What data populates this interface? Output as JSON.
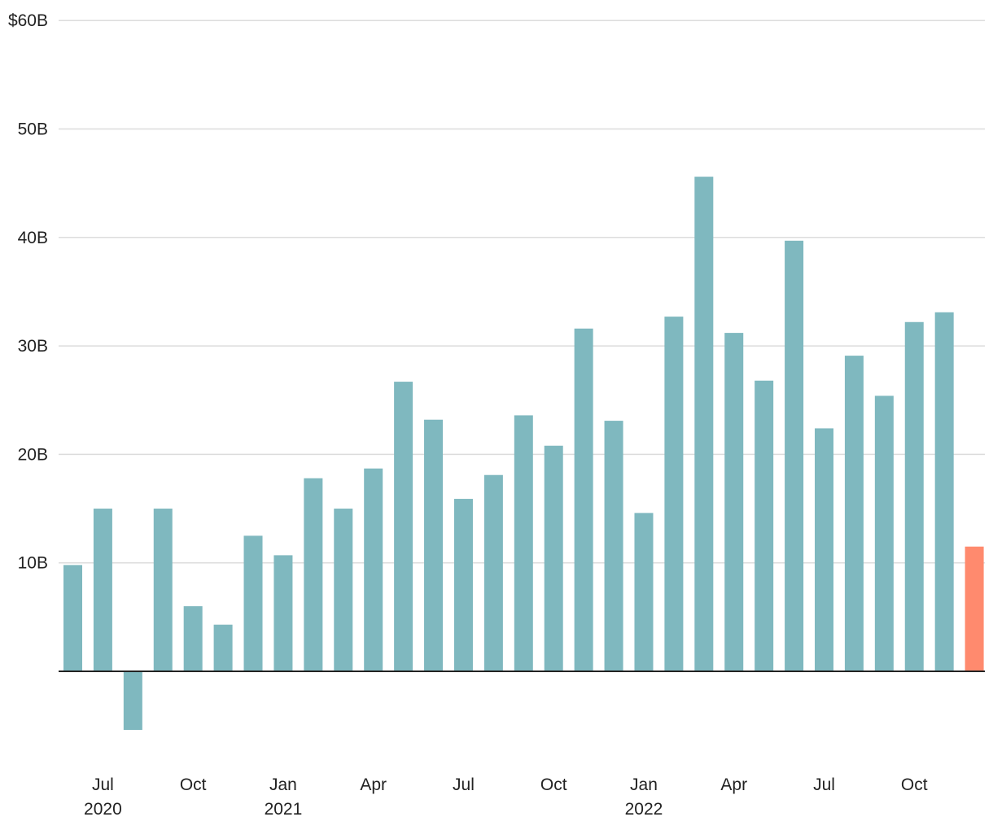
{
  "chart_data": {
    "type": "bar",
    "title": "",
    "xlabel": "",
    "ylabel": "",
    "ylim": [
      -10,
      60
    ],
    "grid": true,
    "y_ticks": [
      {
        "value": 60,
        "label": "$60B"
      },
      {
        "value": 50,
        "label": "50B"
      },
      {
        "value": 40,
        "label": "40B"
      },
      {
        "value": 30,
        "label": "30B"
      },
      {
        "value": 20,
        "label": "20B"
      },
      {
        "value": 10,
        "label": "10B"
      }
    ],
    "categories": [
      "Jun 2020",
      "Jul 2020",
      "Aug 2020",
      "Sep 2020",
      "Oct 2020",
      "Nov 2020",
      "Dec 2020",
      "Jan 2021",
      "Feb 2021",
      "Mar 2021",
      "Apr 2021",
      "May 2021",
      "Jun 2021",
      "Jul 2021",
      "Aug 2021",
      "Sep 2021",
      "Oct 2021",
      "Nov 2021",
      "Dec 2021",
      "Jan 2022",
      "Feb 2022",
      "Mar 2022",
      "Apr 2022",
      "May 2022",
      "Jun 2022",
      "Jul 2022",
      "Aug 2022",
      "Sep 2022",
      "Oct 2022",
      "Nov 2022",
      "Dec 2022"
    ],
    "values": [
      9.8,
      15.0,
      -5.4,
      15.0,
      6.0,
      4.3,
      12.5,
      10.7,
      17.8,
      15.0,
      18.7,
      26.7,
      23.2,
      15.9,
      18.1,
      23.6,
      20.8,
      31.6,
      23.1,
      14.6,
      32.7,
      45.6,
      31.2,
      26.8,
      39.7,
      22.4,
      29.1,
      25.4,
      32.2,
      33.1,
      11.5
    ],
    "colors": {
      "default": "#7fb8bf",
      "highlight": "#ff8a6e"
    },
    "highlight_index": 30,
    "x_ticks": [
      {
        "index": 1,
        "label": "Jul",
        "year": "2020"
      },
      {
        "index": 4,
        "label": "Oct",
        "year": ""
      },
      {
        "index": 7,
        "label": "Jan",
        "year": "2021"
      },
      {
        "index": 10,
        "label": "Apr",
        "year": ""
      },
      {
        "index": 13,
        "label": "Jul",
        "year": ""
      },
      {
        "index": 16,
        "label": "Oct",
        "year": ""
      },
      {
        "index": 19,
        "label": "Jan",
        "year": "2022"
      },
      {
        "index": 22,
        "label": "Apr",
        "year": ""
      },
      {
        "index": 25,
        "label": "Jul",
        "year": ""
      },
      {
        "index": 28,
        "label": "Oct",
        "year": ""
      }
    ]
  }
}
